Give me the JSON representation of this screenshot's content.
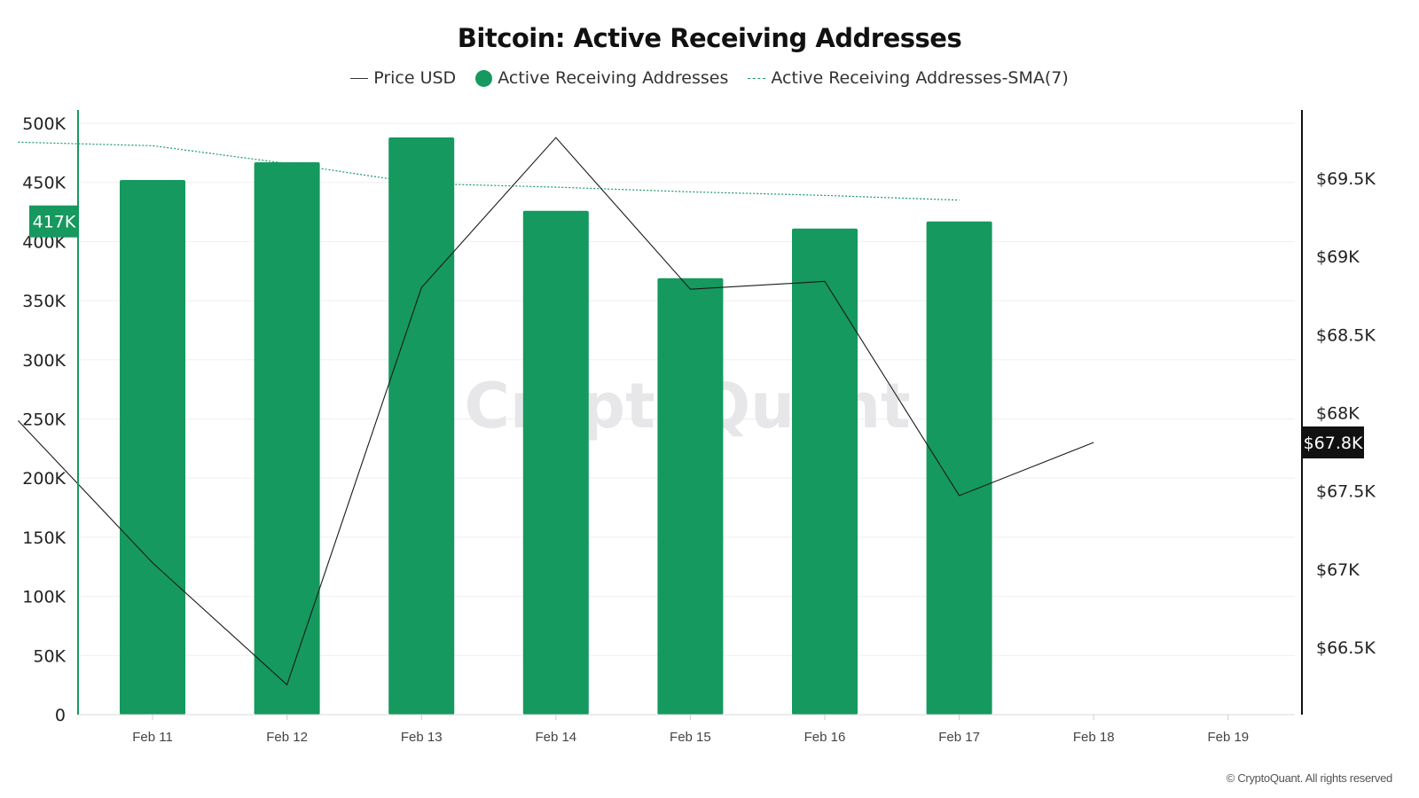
{
  "chart_data": {
    "type": "bar",
    "title": "Bitcoin: Active Receiving Addresses",
    "categories": [
      "Feb 11",
      "Feb 12",
      "Feb 13",
      "Feb 14",
      "Feb 15",
      "Feb 16",
      "Feb 17",
      "Feb 18",
      "Feb 19"
    ],
    "series": [
      {
        "name": "Active Receiving Addresses",
        "type": "bar",
        "axis": "left",
        "color": "#15995e",
        "values": [
          452000,
          467000,
          488000,
          426000,
          369000,
          411000,
          417000,
          null,
          null
        ]
      },
      {
        "name": "Price USD",
        "type": "line",
        "axis": "right",
        "color": "#1a1a1a",
        "x": [
          "Feb 10",
          "Feb 11",
          "Feb 12",
          "Feb 13",
          "Feb 14",
          "Feb 15",
          "Feb 16",
          "Feb 17",
          "Feb 18"
        ],
        "values": [
          67950,
          67040,
          66260,
          68800,
          69760,
          68790,
          68840,
          67470,
          67810
        ]
      },
      {
        "name": "Active Receiving Addresses-SMA(7)",
        "type": "line",
        "style": "dashed",
        "axis": "left",
        "color": "#1a9960",
        "x": [
          "Feb 10",
          "Feb 11",
          "Feb 12",
          "Feb 13",
          "Feb 14",
          "Feb 15",
          "Feb 16",
          "Feb 17"
        ],
        "values": [
          484000,
          481000,
          466000,
          449000,
          446000,
          442000,
          439000,
          435000
        ]
      }
    ],
    "y_left": {
      "ylim": [
        0,
        500000
      ],
      "ticks": [
        0,
        50000,
        100000,
        150000,
        200000,
        250000,
        300000,
        350000,
        400000,
        450000,
        500000
      ],
      "tick_labels": [
        "0",
        "50K",
        "100K",
        "150K",
        "200K",
        "250K",
        "300K",
        "350K",
        "400K",
        "450K",
        "500K"
      ]
    },
    "y_right": {
      "ylim": [
        66000,
        69900
      ],
      "ticks": [
        66500,
        67000,
        67500,
        68000,
        68500,
        69000,
        69500
      ],
      "tick_labels": [
        "$66.5K",
        "$67K",
        "$67.5K",
        "$68K",
        "$68.5K",
        "$69K",
        "$69.5K"
      ]
    },
    "current_labels": {
      "left": {
        "text": "417K",
        "value": 417000,
        "color": "#15995e"
      },
      "right": {
        "text": "$67.8K",
        "value": 67810,
        "color": "#111111"
      }
    },
    "legend": [
      "Price USD",
      "Active Receiving Addresses",
      "Active Receiving Addresses-SMA(7)"
    ],
    "legend_position": "top",
    "grid": true,
    "watermark": "CryptoQuant",
    "credit": "© CryptoQuant. All rights reserved"
  }
}
